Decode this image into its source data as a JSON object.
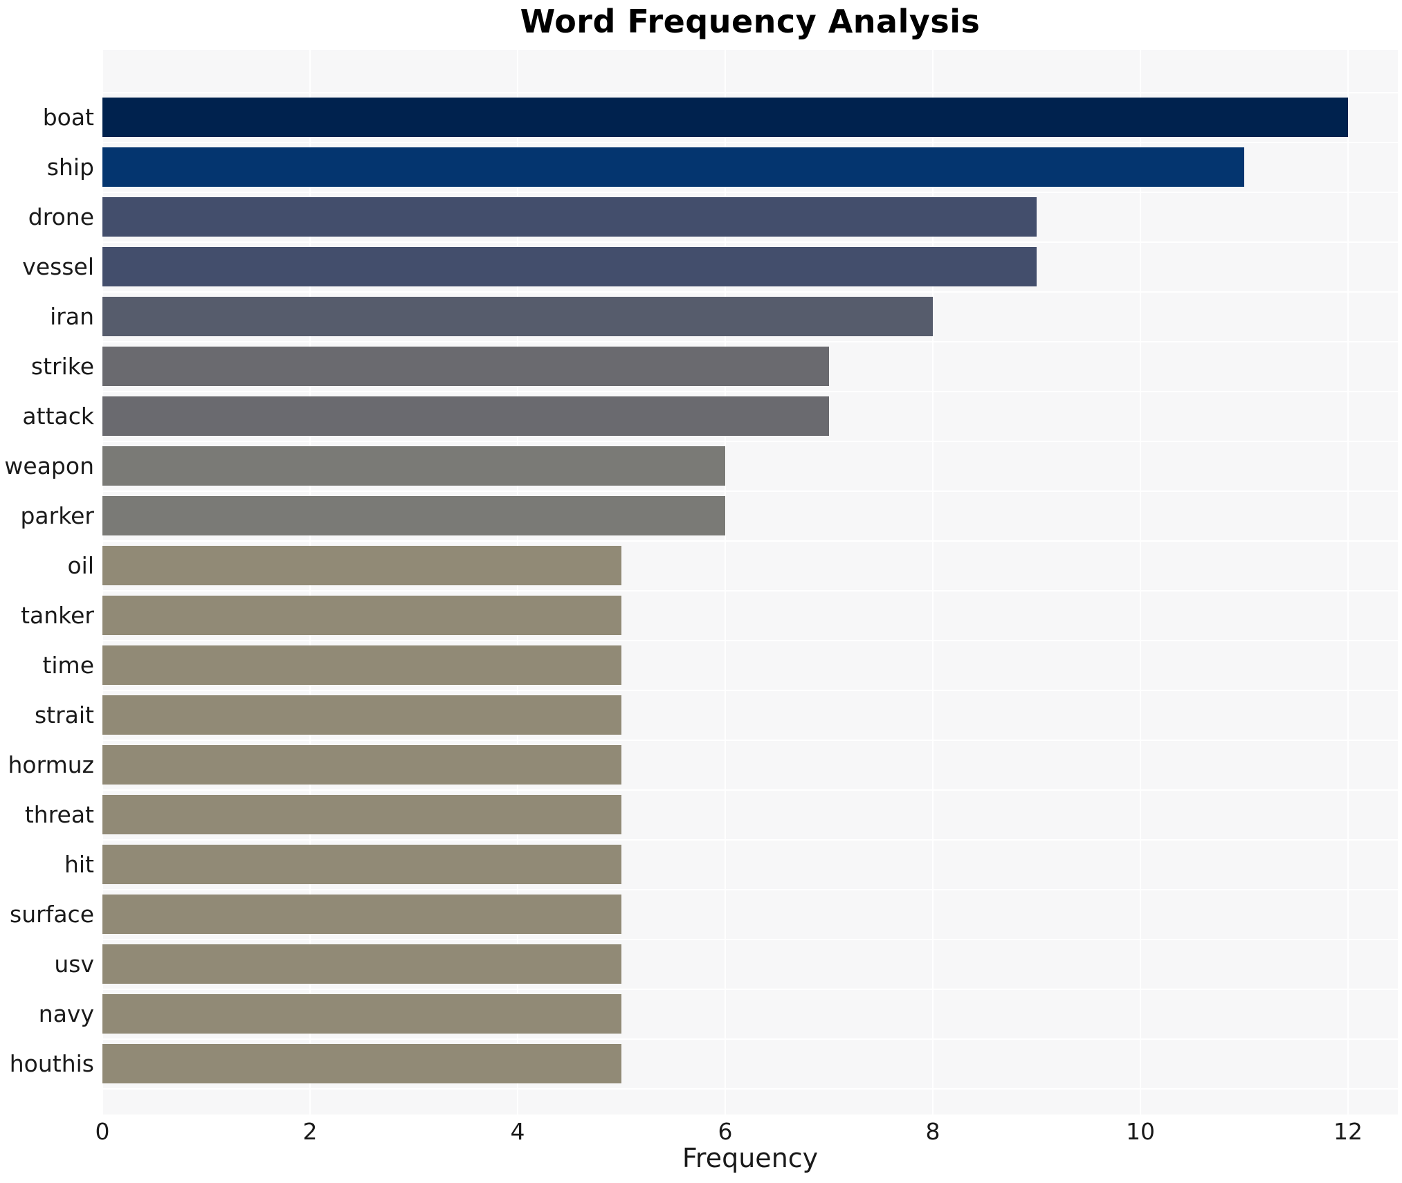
{
  "chart_data": {
    "type": "bar",
    "orientation": "horizontal",
    "title": "Word Frequency Analysis",
    "xlabel": "Frequency",
    "ylabel": "",
    "categories": [
      "boat",
      "ship",
      "drone",
      "vessel",
      "iran",
      "strike",
      "attack",
      "weapon",
      "parker",
      "oil",
      "tanker",
      "time",
      "strait",
      "hormuz",
      "threat",
      "hit",
      "surface",
      "usv",
      "navy",
      "houthis"
    ],
    "values": [
      12,
      11,
      9,
      9,
      8,
      7,
      7,
      6,
      6,
      5,
      5,
      5,
      5,
      5,
      5,
      5,
      5,
      5,
      5,
      5
    ],
    "bar_colors": [
      "#00224e",
      "#04356f",
      "#434e6c",
      "#434e6c",
      "#565c6c",
      "#6a6a6f",
      "#6a6a6f",
      "#7a7a76",
      "#7a7a76",
      "#918a76",
      "#918a76",
      "#918a76",
      "#918a76",
      "#918a76",
      "#918a76",
      "#918a76",
      "#918a76",
      "#918a76",
      "#918a76",
      "#918a76"
    ],
    "x_ticks": [
      0,
      2,
      4,
      6,
      8,
      10,
      12
    ],
    "xlim": [
      0,
      12.5
    ],
    "grid": true,
    "legend": "none",
    "plot_bg_color": "#f7f7f8",
    "grid_color": "#ffffff"
  }
}
